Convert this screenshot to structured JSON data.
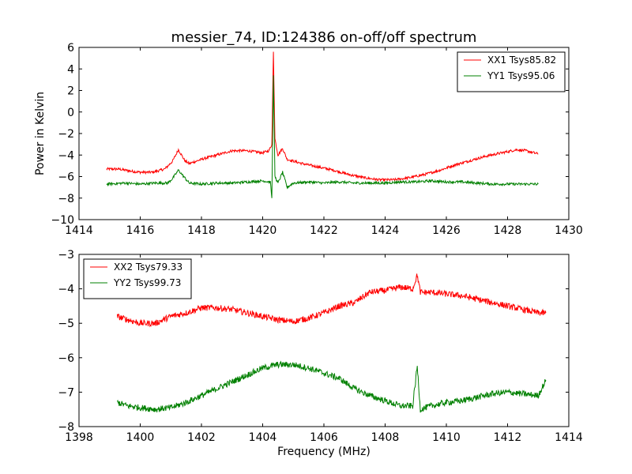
{
  "figure": {
    "title": "messier_74, ID:124386 on-off/off spectrum",
    "ylabel": "Power in Kelvin",
    "xlabel": "Frequency (MHz)"
  },
  "chart_data": [
    {
      "type": "line",
      "title": "messier_74, ID:124386 on-off/off spectrum",
      "xlabel": "",
      "ylabel": "Power in Kelvin",
      "xlim": [
        1414,
        1430
      ],
      "ylim": [
        -10,
        6
      ],
      "xticks": [
        1414,
        1416,
        1418,
        1420,
        1422,
        1424,
        1426,
        1428,
        1430
      ],
      "yticks": [
        -10,
        -8,
        -6,
        -4,
        -2,
        0,
        2,
        4,
        6
      ],
      "grid": false,
      "legend_position": "top-right",
      "series": [
        {
          "name": "XX1 Tsys85.82",
          "color": "#ff0000",
          "points": [
            [
              1414.9,
              -5.3
            ],
            [
              1415.3,
              -5.3
            ],
            [
              1415.7,
              -5.5
            ],
            [
              1416.0,
              -5.6
            ],
            [
              1416.4,
              -5.6
            ],
            [
              1416.8,
              -5.3
            ],
            [
              1417.05,
              -4.6
            ],
            [
              1417.25,
              -3.5
            ],
            [
              1417.45,
              -4.5
            ],
            [
              1417.6,
              -4.8
            ],
            [
              1418.0,
              -4.4
            ],
            [
              1418.5,
              -4.0
            ],
            [
              1419.0,
              -3.6
            ],
            [
              1419.5,
              -3.6
            ],
            [
              1420.0,
              -3.8
            ],
            [
              1420.2,
              -3.6
            ],
            [
              1420.3,
              -3.0
            ],
            [
              1420.35,
              5.6
            ],
            [
              1420.4,
              -2.5
            ],
            [
              1420.5,
              -4.0
            ],
            [
              1420.65,
              -3.4
            ],
            [
              1420.8,
              -4.4
            ],
            [
              1421.3,
              -4.8
            ],
            [
              1421.8,
              -5.1
            ],
            [
              1422.3,
              -5.4
            ],
            [
              1422.8,
              -5.8
            ],
            [
              1423.3,
              -6.1
            ],
            [
              1423.8,
              -6.3
            ],
            [
              1424.3,
              -6.3
            ],
            [
              1424.8,
              -6.1
            ],
            [
              1425.3,
              -5.8
            ],
            [
              1425.8,
              -5.4
            ],
            [
              1426.3,
              -4.9
            ],
            [
              1426.8,
              -4.5
            ],
            [
              1427.3,
              -4.1
            ],
            [
              1427.8,
              -3.8
            ],
            [
              1428.3,
              -3.5
            ],
            [
              1428.6,
              -3.6
            ],
            [
              1429.0,
              -3.9
            ]
          ]
        },
        {
          "name": "YY1 Tsys95.06",
          "color": "#008000",
          "points": [
            [
              1414.9,
              -6.7
            ],
            [
              1415.5,
              -6.6
            ],
            [
              1416.0,
              -6.7
            ],
            [
              1416.5,
              -6.6
            ],
            [
              1416.9,
              -6.6
            ],
            [
              1417.05,
              -6.2
            ],
            [
              1417.25,
              -5.4
            ],
            [
              1417.45,
              -6.1
            ],
            [
              1417.6,
              -6.6
            ],
            [
              1418.0,
              -6.7
            ],
            [
              1418.5,
              -6.6
            ],
            [
              1419.0,
              -6.6
            ],
            [
              1419.5,
              -6.5
            ],
            [
              1420.0,
              -6.4
            ],
            [
              1420.25,
              -6.5
            ],
            [
              1420.3,
              -8.0
            ],
            [
              1420.35,
              3.4
            ],
            [
              1420.4,
              -6.0
            ],
            [
              1420.5,
              -6.6
            ],
            [
              1420.65,
              -5.6
            ],
            [
              1420.8,
              -7.0
            ],
            [
              1421.0,
              -6.6
            ],
            [
              1421.5,
              -6.5
            ],
            [
              1422.0,
              -6.6
            ],
            [
              1422.5,
              -6.5
            ],
            [
              1423.0,
              -6.6
            ],
            [
              1423.5,
              -6.6
            ],
            [
              1424.0,
              -6.6
            ],
            [
              1424.5,
              -6.5
            ],
            [
              1425.0,
              -6.5
            ],
            [
              1425.5,
              -6.4
            ],
            [
              1426.0,
              -6.5
            ],
            [
              1426.5,
              -6.5
            ],
            [
              1427.0,
              -6.6
            ],
            [
              1427.5,
              -6.7
            ],
            [
              1428.0,
              -6.7
            ],
            [
              1428.5,
              -6.7
            ],
            [
              1429.0,
              -6.7
            ]
          ]
        }
      ]
    },
    {
      "type": "line",
      "title": "",
      "xlabel": "Frequency (MHz)",
      "ylabel": "",
      "xlim": [
        1398,
        1414
      ],
      "ylim": [
        -8,
        -3
      ],
      "xticks": [
        1398,
        1400,
        1402,
        1404,
        1406,
        1408,
        1410,
        1412,
        1414
      ],
      "yticks": [
        -8,
        -7,
        -6,
        -5,
        -4,
        -3
      ],
      "grid": false,
      "legend_position": "top-left",
      "series": [
        {
          "name": "XX2 Tsys79.33",
          "color": "#ff0000",
          "points": [
            [
              1399.25,
              -4.8
            ],
            [
              1399.6,
              -4.9
            ],
            [
              1400.0,
              -5.0
            ],
            [
              1400.5,
              -5.0
            ],
            [
              1401.0,
              -4.8
            ],
            [
              1401.5,
              -4.7
            ],
            [
              1402.0,
              -4.55
            ],
            [
              1402.5,
              -4.55
            ],
            [
              1403.0,
              -4.6
            ],
            [
              1403.5,
              -4.7
            ],
            [
              1404.0,
              -4.8
            ],
            [
              1404.5,
              -4.9
            ],
            [
              1405.0,
              -4.95
            ],
            [
              1405.5,
              -4.85
            ],
            [
              1406.0,
              -4.7
            ],
            [
              1406.5,
              -4.5
            ],
            [
              1407.0,
              -4.4
            ],
            [
              1407.5,
              -4.1
            ],
            [
              1408.0,
              -4.05
            ],
            [
              1408.5,
              -3.95
            ],
            [
              1408.9,
              -4.0
            ],
            [
              1409.05,
              -3.6
            ],
            [
              1409.15,
              -4.1
            ],
            [
              1409.5,
              -4.1
            ],
            [
              1410.0,
              -4.15
            ],
            [
              1410.5,
              -4.2
            ],
            [
              1411.0,
              -4.3
            ],
            [
              1411.5,
              -4.4
            ],
            [
              1412.0,
              -4.5
            ],
            [
              1412.5,
              -4.6
            ],
            [
              1413.0,
              -4.7
            ],
            [
              1413.25,
              -4.7
            ]
          ]
        },
        {
          "name": "YY2 Tsys99.73",
          "color": "#008000",
          "points": [
            [
              1399.25,
              -7.3
            ],
            [
              1399.6,
              -7.4
            ],
            [
              1400.0,
              -7.45
            ],
            [
              1400.5,
              -7.5
            ],
            [
              1401.0,
              -7.45
            ],
            [
              1401.5,
              -7.3
            ],
            [
              1402.0,
              -7.1
            ],
            [
              1402.5,
              -6.9
            ],
            [
              1403.0,
              -6.7
            ],
            [
              1403.5,
              -6.5
            ],
            [
              1404.0,
              -6.3
            ],
            [
              1404.5,
              -6.2
            ],
            [
              1405.0,
              -6.2
            ],
            [
              1405.5,
              -6.3
            ],
            [
              1406.0,
              -6.45
            ],
            [
              1406.5,
              -6.6
            ],
            [
              1407.0,
              -6.9
            ],
            [
              1407.5,
              -7.1
            ],
            [
              1408.0,
              -7.25
            ],
            [
              1408.5,
              -7.4
            ],
            [
              1408.9,
              -7.4
            ],
            [
              1409.05,
              -6.25
            ],
            [
              1409.15,
              -7.5
            ],
            [
              1409.5,
              -7.4
            ],
            [
              1410.0,
              -7.3
            ],
            [
              1410.5,
              -7.25
            ],
            [
              1411.0,
              -7.15
            ],
            [
              1411.5,
              -7.05
            ],
            [
              1412.0,
              -7.0
            ],
            [
              1412.5,
              -7.05
            ],
            [
              1413.0,
              -7.1
            ],
            [
              1413.25,
              -6.65
            ]
          ]
        }
      ]
    }
  ]
}
